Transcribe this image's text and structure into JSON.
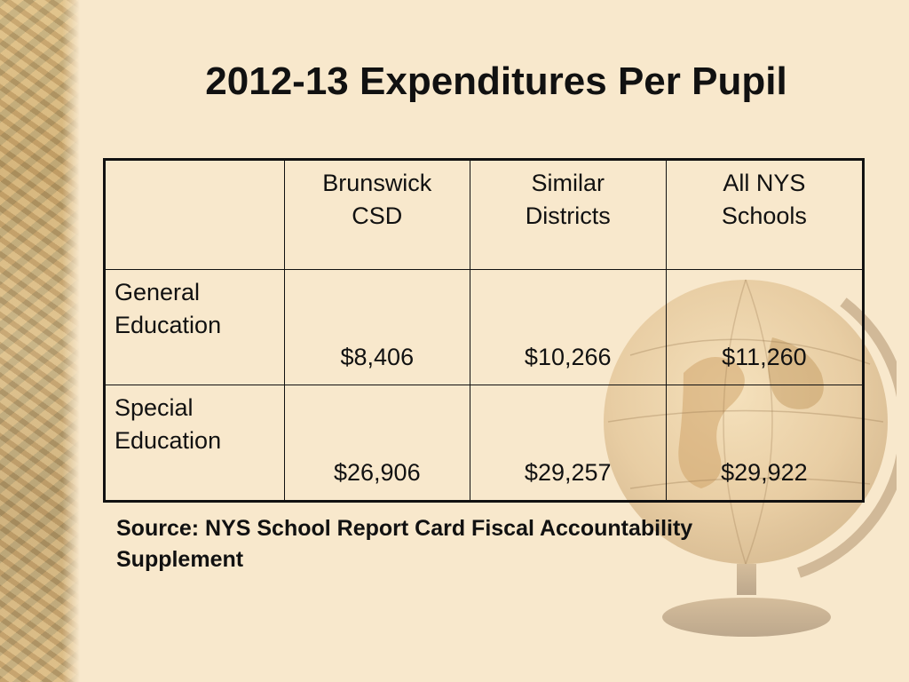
{
  "slide": {
    "title": "2012-13 Expenditures Per Pupil",
    "source_line1": "Source: NYS School Report Card Fiscal Accountability",
    "source_line2": "Supplement"
  },
  "table": {
    "headers": [
      {
        "line1": "",
        "line2": ""
      },
      {
        "line1": "Brunswick",
        "line2": "CSD"
      },
      {
        "line1": "Similar",
        "line2": "Districts"
      },
      {
        "line1": "All NYS",
        "line2": "Schools"
      }
    ],
    "rows": [
      {
        "label_line1": "General",
        "label_line2": "Education",
        "values": [
          "$8,406",
          "$10,266",
          "$11,260"
        ]
      },
      {
        "label_line1": "Special",
        "label_line2": "Education",
        "values": [
          "$26,906",
          "$29,257",
          "$29,922"
        ]
      }
    ]
  },
  "colors": {
    "background": "#f8e8cc",
    "text": "#111111"
  }
}
